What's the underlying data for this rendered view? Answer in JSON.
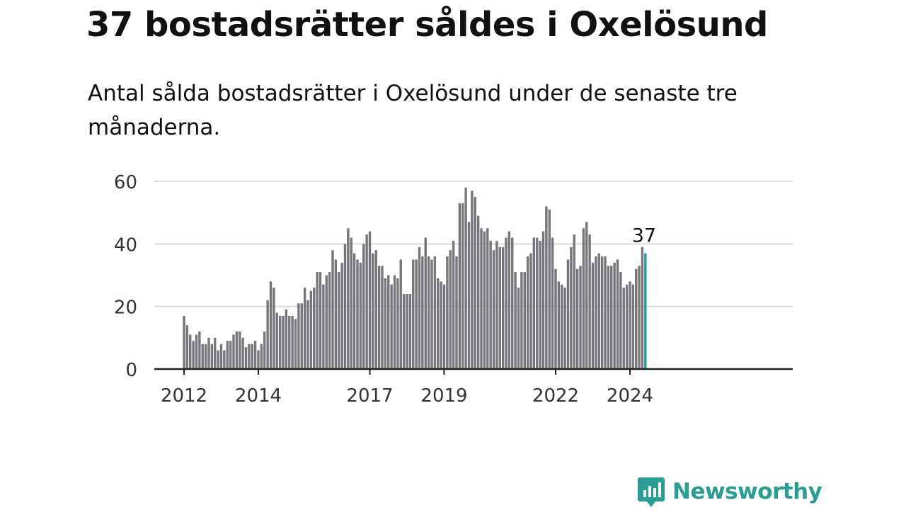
{
  "title": "37 bostadsrätter såldes i Oxelösund",
  "subtitle": "Antal sålda bostadsrätter i Oxelösund under de senaste tre månaderna.",
  "brand": {
    "name": "Newsworthy",
    "icon": "newsworthy-chart-logo-icon",
    "color": "#2a9d95"
  },
  "colors": {
    "bar": "#76767b",
    "highlight": "#1f9e99",
    "grid": "#dcdcdc",
    "axis": "#222222"
  },
  "chart_data": {
    "type": "bar",
    "ylim": [
      0,
      60
    ],
    "yticks": [
      0,
      20,
      40,
      60
    ],
    "xticks": [
      "2012",
      "2014",
      "2017",
      "2019",
      "2022",
      "2024"
    ],
    "grid": true,
    "highlight_label": "37",
    "series": [
      {
        "values": [
          17,
          14,
          11,
          9,
          11,
          12,
          8,
          8,
          10,
          8,
          10,
          6,
          8,
          6,
          9,
          9,
          11,
          12,
          12,
          10,
          7,
          8,
          8,
          9,
          6,
          8,
          12,
          22,
          28,
          26,
          18,
          17,
          17,
          19,
          17,
          17,
          16,
          21,
          21,
          26,
          22,
          25,
          26,
          31,
          31,
          27,
          30,
          31,
          38,
          35,
          31,
          34,
          40,
          45,
          42,
          37,
          35,
          34,
          40,
          43,
          44,
          37,
          38,
          33,
          33,
          29,
          30,
          27,
          30,
          29,
          35,
          24,
          24,
          24,
          35,
          35,
          39,
          36,
          42,
          36,
          35,
          36,
          29,
          28,
          27,
          36,
          38,
          41,
          36,
          53,
          53,
          58,
          47,
          57,
          55,
          49,
          45,
          44,
          45,
          41,
          38,
          41,
          39,
          39,
          42,
          44,
          42,
          31,
          26,
          31,
          31,
          36,
          37,
          42,
          42,
          41,
          44,
          52,
          51,
          42,
          32,
          28,
          27,
          26,
          35,
          39,
          43,
          32,
          33,
          45,
          47,
          43,
          34,
          36,
          37,
          36,
          36,
          33,
          33,
          34,
          35,
          31,
          26,
          27,
          28,
          27,
          32,
          33,
          39,
          37
        ]
      }
    ]
  }
}
